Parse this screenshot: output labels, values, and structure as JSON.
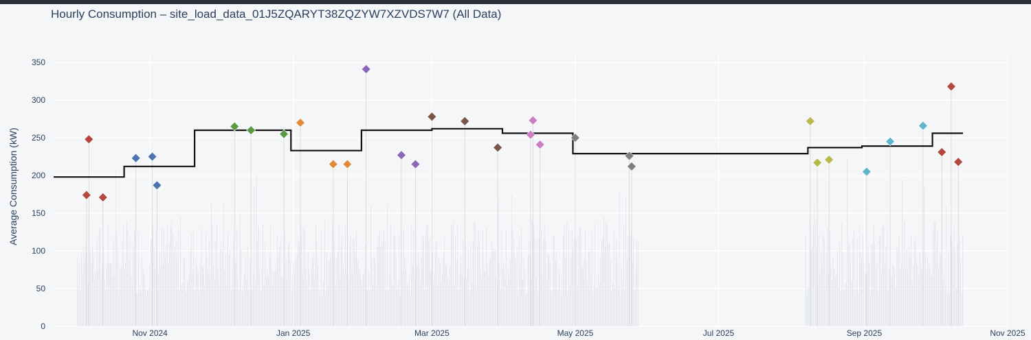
{
  "chart_data": {
    "type": "scatter",
    "title": "Hourly Consumption – site_load_data_01J5ZQARYT38ZQZYW7XZVDS7W7 (All Data)",
    "xlabel": "",
    "ylabel": "Average Consumption (kW)",
    "ylim": [
      0,
      350
    ],
    "yticks": [
      0,
      50,
      100,
      150,
      200,
      250,
      300,
      350
    ],
    "xlim": [
      "2024-09-21",
      "2025-11-01"
    ],
    "xticks": [
      {
        "date": "2024-11-01",
        "label": "Nov 2024"
      },
      {
        "date": "2025-01-01",
        "label": "Jan 2025"
      },
      {
        "date": "2025-03-01",
        "label": "Mar 2025"
      },
      {
        "date": "2025-05-01",
        "label": "May 2025"
      },
      {
        "date": "2025-07-01",
        "label": "Jul 2025"
      },
      {
        "date": "2025-09-01",
        "label": "Sep 2025"
      },
      {
        "date": "2025-11-01",
        "label": "Nov 2025"
      }
    ],
    "monthly_average": {
      "name": "Monthly average",
      "color": "#111111",
      "steps": [
        {
          "start": "2024-09-21",
          "end": "2024-10-21",
          "value": 198
        },
        {
          "start": "2024-10-21",
          "end": "2024-11-20",
          "value": 212
        },
        {
          "start": "2024-11-20",
          "end": "2024-12-20",
          "value": 260
        },
        {
          "start": "2024-12-20",
          "end": "2024-12-31",
          "value": 260
        },
        {
          "start": "2024-12-31",
          "end": "2025-01-30",
          "value": 233
        },
        {
          "start": "2025-01-30",
          "end": "2025-03-01",
          "value": 260
        },
        {
          "start": "2025-03-01",
          "end": "2025-03-31",
          "value": 262
        },
        {
          "start": "2025-03-31",
          "end": "2025-04-30",
          "value": 256
        },
        {
          "start": "2025-04-30",
          "end": "2025-08-08",
          "value": 229
        },
        {
          "start": "2025-08-08",
          "end": "2025-08-31",
          "value": 237
        },
        {
          "start": "2025-08-31",
          "end": "2025-09-30",
          "value": 239
        },
        {
          "start": "2025-09-30",
          "end": "2025-10-13",
          "value": 256
        }
      ]
    },
    "peaks": [
      {
        "date": "2024-10-05",
        "value": 174,
        "color": "#b5483e"
      },
      {
        "date": "2024-10-06",
        "value": 248,
        "color": "#b5483e"
      },
      {
        "date": "2024-10-12",
        "value": 171,
        "color": "#b5483e"
      },
      {
        "date": "2024-10-26",
        "value": 223,
        "color": "#4e74ad"
      },
      {
        "date": "2024-11-02",
        "value": 225,
        "color": "#4e74ad"
      },
      {
        "date": "2024-11-04",
        "value": 187,
        "color": "#4e74ad"
      },
      {
        "date": "2024-12-07",
        "value": 265,
        "color": "#5a9a44"
      },
      {
        "date": "2024-12-14",
        "value": 260,
        "color": "#5a9a44"
      },
      {
        "date": "2024-12-28",
        "value": 255,
        "color": "#5a9a44"
      },
      {
        "date": "2025-01-04",
        "value": 270,
        "color": "#e08a3c"
      },
      {
        "date": "2025-01-18",
        "value": 215,
        "color": "#e08a3c"
      },
      {
        "date": "2025-01-24",
        "value": 215,
        "color": "#e08a3c"
      },
      {
        "date": "2025-02-01",
        "value": 341,
        "color": "#8a67b8"
      },
      {
        "date": "2025-02-16",
        "value": 227,
        "color": "#8a67b8"
      },
      {
        "date": "2025-02-22",
        "value": 215,
        "color": "#8a67b8"
      },
      {
        "date": "2025-03-01",
        "value": 278,
        "color": "#7a5548"
      },
      {
        "date": "2025-03-15",
        "value": 272,
        "color": "#7a5548"
      },
      {
        "date": "2025-03-29",
        "value": 237,
        "color": "#7a5548"
      },
      {
        "date": "2025-04-12",
        "value": 254,
        "color": "#cc7ec2"
      },
      {
        "date": "2025-04-13",
        "value": 273,
        "color": "#cc7ec2"
      },
      {
        "date": "2025-04-16",
        "value": 241,
        "color": "#cc7ec2"
      },
      {
        "date": "2025-05-01",
        "value": 250,
        "color": "#7f7f7f"
      },
      {
        "date": "2025-05-24",
        "value": 226,
        "color": "#7f7f7f"
      },
      {
        "date": "2025-05-25",
        "value": 212,
        "color": "#7f7f7f"
      },
      {
        "date": "2025-08-09",
        "value": 272,
        "color": "#b9b84b"
      },
      {
        "date": "2025-08-12",
        "value": 217,
        "color": "#b9b84b"
      },
      {
        "date": "2025-08-17",
        "value": 221,
        "color": "#b9b84b"
      },
      {
        "date": "2025-09-02",
        "value": 205,
        "color": "#5fb6cc"
      },
      {
        "date": "2025-09-12",
        "value": 245,
        "color": "#5fb6cc"
      },
      {
        "date": "2025-09-26",
        "value": 266,
        "color": "#5fb6cc"
      },
      {
        "date": "2025-10-04",
        "value": 231,
        "color": "#b5483e"
      },
      {
        "date": "2025-10-08",
        "value": 318,
        "color": "#b5483e"
      },
      {
        "date": "2025-10-11",
        "value": 218,
        "color": "#b5483e"
      }
    ],
    "hourly_series": {
      "name": "Hourly consumption",
      "color": "#c9cde4",
      "segments": [
        {
          "start": "2024-10-01",
          "end": "2025-05-28"
        },
        {
          "start": "2025-08-07",
          "end": "2025-10-13"
        }
      ],
      "typical_range": [
        40,
        140
      ]
    }
  }
}
